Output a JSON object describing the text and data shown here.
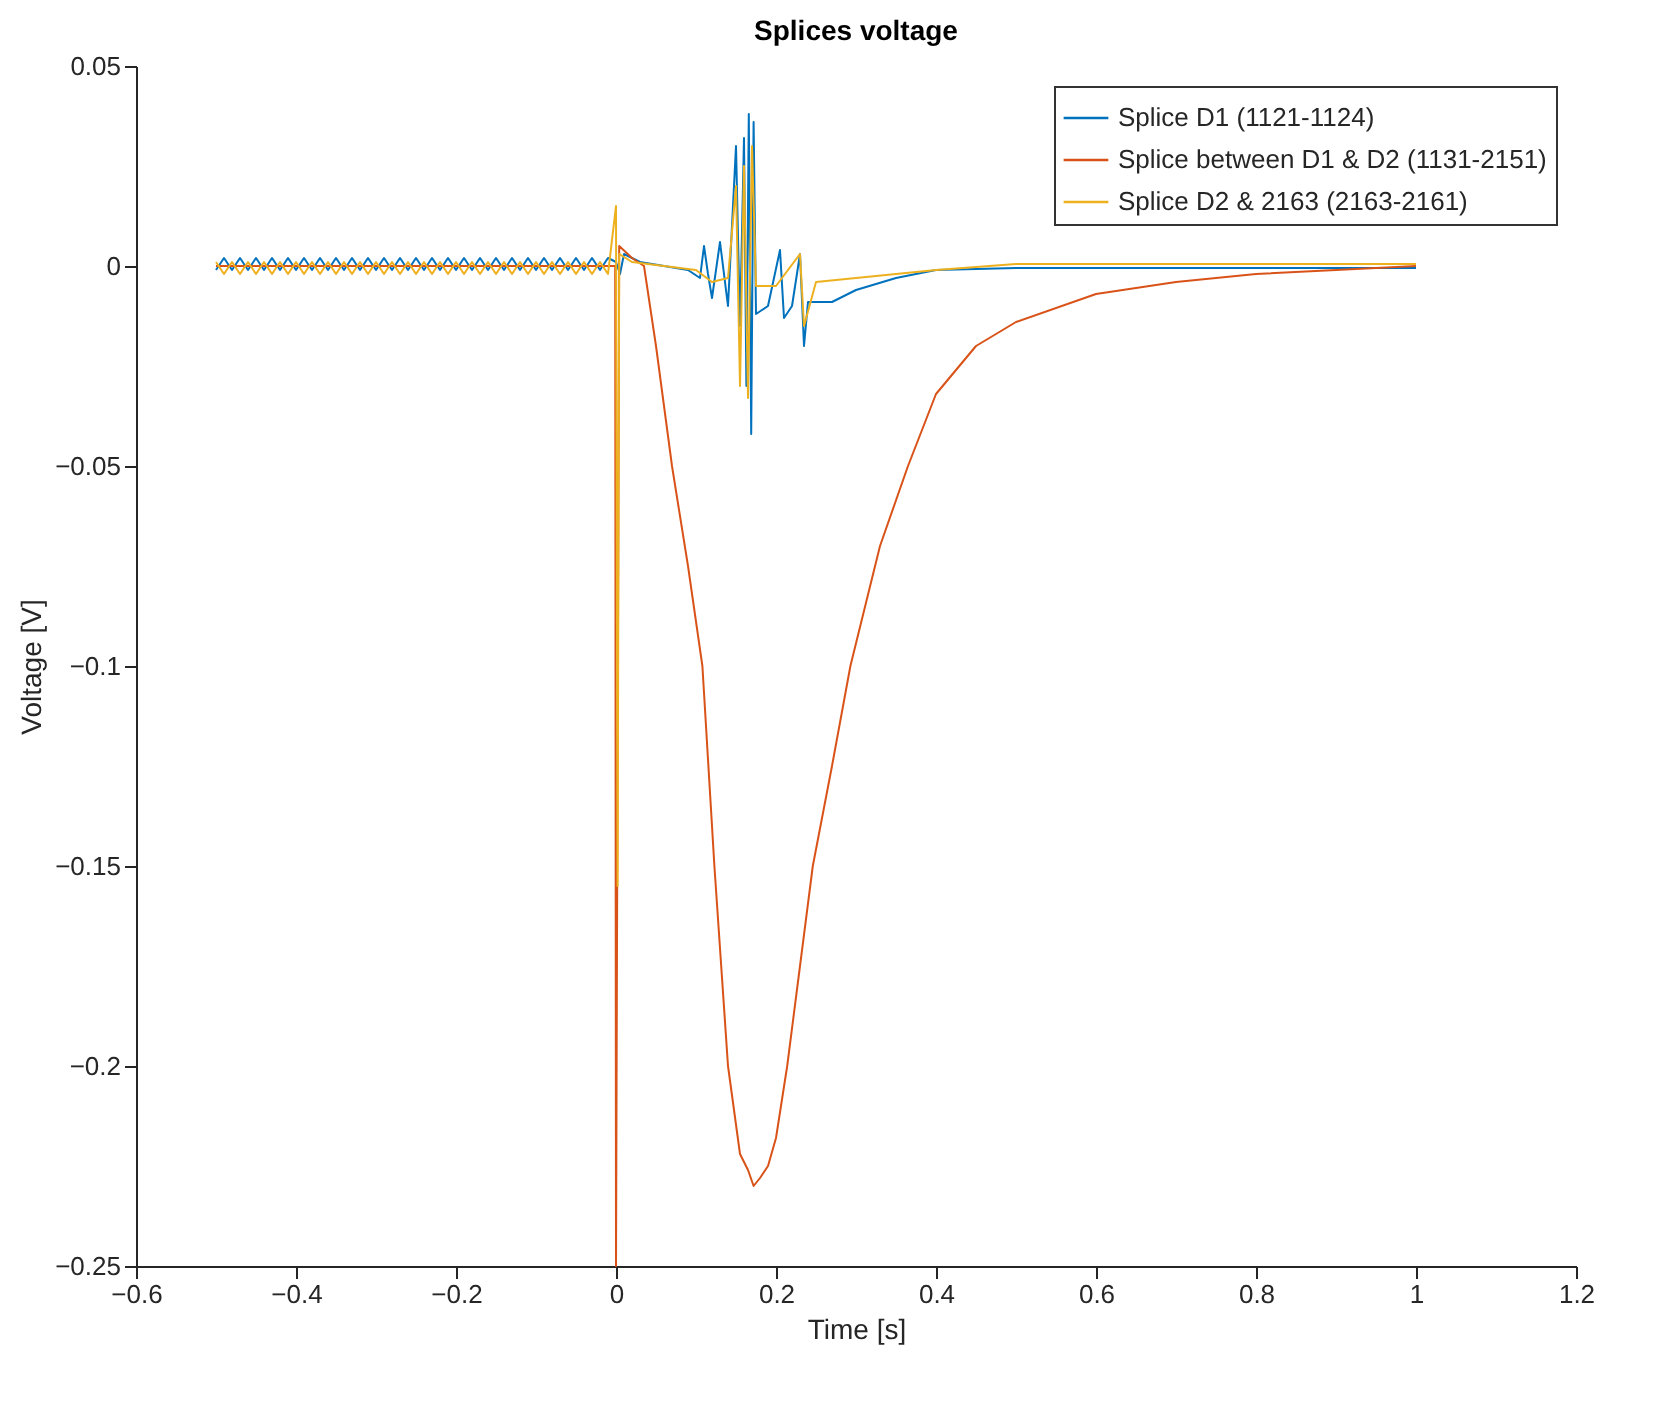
{
  "chart_data": {
    "type": "line",
    "title": "Splices voltage",
    "xlabel": "Time [s]",
    "ylabel": "Voltage [V]",
    "xlim": [
      -0.6,
      1.2
    ],
    "xticks": [
      -0.6,
      -0.4,
      -0.2,
      0,
      0.2,
      0.4,
      0.6,
      0.8,
      1,
      1.2
    ],
    "ylim": [
      -0.25,
      0.05
    ],
    "yticks": [
      -0.25,
      -0.2,
      -0.15,
      -0.1,
      -0.05,
      0,
      0.05
    ],
    "legend": "top right",
    "series": [
      {
        "name": "Splice D1 (1121-1124)",
        "color": "#0072bd",
        "x": [
          -0.5,
          -0.49,
          -0.48,
          -0.47,
          -0.46,
          -0.45,
          -0.44,
          -0.43,
          -0.42,
          -0.41,
          -0.4,
          -0.39,
          -0.38,
          -0.37,
          -0.36,
          -0.35,
          -0.34,
          -0.33,
          -0.32,
          -0.31,
          -0.3,
          -0.29,
          -0.28,
          -0.27,
          -0.26,
          -0.25,
          -0.24,
          -0.23,
          -0.22,
          -0.21,
          -0.2,
          -0.19,
          -0.18,
          -0.17,
          -0.16,
          -0.15,
          -0.14,
          -0.13,
          -0.12,
          -0.11,
          -0.1,
          -0.09,
          -0.08,
          -0.07,
          -0.06,
          -0.05,
          -0.04,
          -0.03,
          -0.02,
          -0.01,
          0,
          0.005,
          0.01,
          0.03,
          0.06,
          0.09,
          0.105,
          0.11,
          0.115,
          0.12,
          0.13,
          0.14,
          0.15,
          0.155,
          0.16,
          0.163,
          0.166,
          0.169,
          0.172,
          0.175,
          0.19,
          0.205,
          0.21,
          0.22,
          0.23,
          0.235,
          0.24,
          0.27,
          0.3,
          0.35,
          0.4,
          0.5,
          0.7,
          1
        ],
        "values": [
          -0.001,
          0.002,
          -0.001,
          0.002,
          -0.001,
          0.002,
          -0.001,
          0.002,
          -0.001,
          0.002,
          -0.001,
          0.002,
          -0.001,
          0.002,
          -0.001,
          0.002,
          -0.001,
          0.002,
          -0.001,
          0.002,
          -0.001,
          0.002,
          -0.001,
          0.002,
          -0.001,
          0.002,
          -0.001,
          0.002,
          -0.001,
          0.002,
          -0.001,
          0.002,
          -0.001,
          0.002,
          -0.001,
          0.002,
          -0.001,
          0.002,
          -0.001,
          0.002,
          -0.001,
          0.002,
          -0.001,
          0.002,
          -0.001,
          0.002,
          -0.001,
          0.002,
          -0.001,
          0.002,
          0.001,
          -0.002,
          0.003,
          0.001,
          0,
          -0.001,
          -0.003,
          0.005,
          -0.002,
          -0.008,
          0.006,
          -0.01,
          0.03,
          -0.015,
          0.032,
          -0.03,
          0.038,
          -0.042,
          0.036,
          -0.012,
          -0.01,
          0.004,
          -0.013,
          -0.01,
          0.003,
          -0.02,
          -0.009,
          -0.009,
          -0.006,
          -0.003,
          -0.001,
          -0.0005,
          -0.0005,
          -0.0005
        ]
      },
      {
        "name": "Splice between D1 & D2 (1131-2151)",
        "color": "#d95319",
        "x": [
          -0.5,
          -0.25,
          -0.001,
          0,
          0.004,
          0.02,
          0.035,
          0.05,
          0.07,
          0.09,
          0.108,
          0.123,
          0.14,
          0.155,
          0.165,
          0.172,
          0.18,
          0.19,
          0.2,
          0.214,
          0.23,
          0.246,
          0.27,
          0.293,
          0.33,
          0.365,
          0.4,
          0.45,
          0.5,
          0.6,
          0.7,
          0.8,
          0.9,
          1
        ],
        "values": [
          0,
          0,
          0,
          -0.25,
          0.005,
          0.002,
          0,
          -0.02,
          -0.05,
          -0.075,
          -0.1,
          -0.15,
          -0.2,
          -0.222,
          -0.226,
          -0.23,
          -0.228,
          -0.225,
          -0.218,
          -0.2,
          -0.175,
          -0.15,
          -0.125,
          -0.1,
          -0.07,
          -0.05,
          -0.032,
          -0.02,
          -0.014,
          -0.007,
          -0.004,
          -0.002,
          -0.001,
          0
        ]
      },
      {
        "name": "Splice D2 & 2163 (2163-2161)",
        "color": "#edb120",
        "x": [
          -0.5,
          -0.49,
          -0.48,
          -0.47,
          -0.46,
          -0.45,
          -0.44,
          -0.43,
          -0.42,
          -0.41,
          -0.4,
          -0.39,
          -0.38,
          -0.37,
          -0.36,
          -0.35,
          -0.34,
          -0.33,
          -0.32,
          -0.31,
          -0.3,
          -0.29,
          -0.28,
          -0.27,
          -0.26,
          -0.25,
          -0.24,
          -0.23,
          -0.22,
          -0.21,
          -0.2,
          -0.19,
          -0.18,
          -0.17,
          -0.16,
          -0.15,
          -0.14,
          -0.13,
          -0.12,
          -0.11,
          -0.1,
          -0.09,
          -0.08,
          -0.07,
          -0.06,
          -0.05,
          -0.04,
          -0.03,
          -0.02,
          -0.01,
          0,
          0.002,
          0.004,
          0.02,
          0.06,
          0.1,
          0.12,
          0.14,
          0.15,
          0.155,
          0.16,
          0.165,
          0.17,
          0.175,
          0.2,
          0.23,
          0.235,
          0.25,
          0.3,
          0.4,
          0.5,
          1
        ],
        "values": [
          0.001,
          -0.002,
          0.001,
          -0.002,
          0.001,
          -0.002,
          0.001,
          -0.002,
          0.001,
          -0.002,
          0.001,
          -0.002,
          0.001,
          -0.002,
          0.001,
          -0.002,
          0.001,
          -0.002,
          0.001,
          -0.002,
          0.001,
          -0.002,
          0.001,
          -0.002,
          0.001,
          -0.002,
          0.001,
          -0.002,
          0.001,
          -0.002,
          0.001,
          -0.002,
          0.001,
          -0.002,
          0.001,
          -0.002,
          0.001,
          -0.002,
          0.001,
          -0.002,
          0.001,
          -0.002,
          0.001,
          -0.002,
          0.001,
          -0.002,
          0.001,
          -0.002,
          0.001,
          -0.002,
          0.015,
          -0.155,
          0.003,
          0.001,
          0,
          -0.001,
          -0.004,
          -0.003,
          0.02,
          -0.03,
          0.025,
          -0.033,
          0.03,
          -0.005,
          -0.005,
          0.003,
          -0.015,
          -0.004,
          -0.003,
          -0.001,
          0.0005,
          0.0005
        ]
      }
    ]
  }
}
